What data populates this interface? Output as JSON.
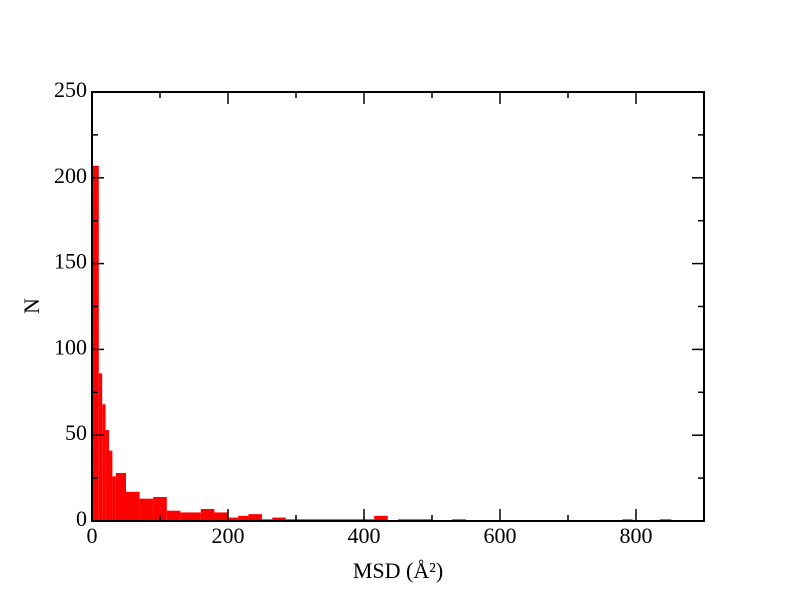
{
  "chart_data": {
    "type": "histogram",
    "xlabel": "MSD (Å²)",
    "ylabel": "N",
    "bins": [
      0,
      10,
      15,
      20,
      25,
      30,
      35,
      50,
      70,
      90,
      110,
      130,
      160,
      180,
      200,
      215,
      230,
      250,
      265,
      285,
      300,
      400,
      415,
      435,
      450,
      470,
      500,
      530,
      550,
      780,
      795,
      835,
      852
    ],
    "counts": [
      207,
      86,
      68,
      53,
      41,
      26,
      28,
      17,
      13,
      14,
      6,
      5,
      7,
      5,
      2,
      3,
      4,
      1,
      2,
      1,
      1,
      1,
      3,
      0,
      1,
      1,
      0,
      1,
      0,
      1,
      0,
      1
    ],
    "color": "#ff0000",
    "xlim": [
      0,
      900
    ],
    "xticks": [
      0,
      200,
      400,
      600,
      800
    ],
    "xminorticks": [
      100,
      300,
      500,
      700
    ],
    "ylim": [
      0,
      250
    ],
    "yticks": [
      0,
      50,
      100,
      150,
      200,
      250
    ],
    "yminorticks": [
      25,
      75,
      125,
      175,
      225
    ]
  }
}
